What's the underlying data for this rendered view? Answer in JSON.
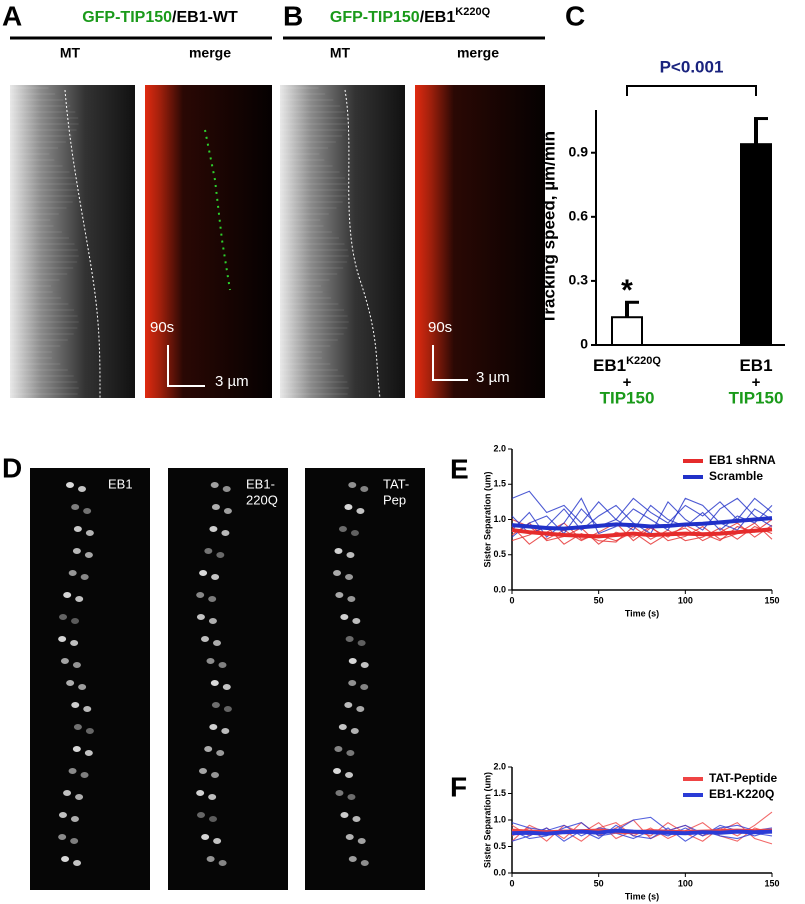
{
  "figure": {
    "A": {
      "letter": "A",
      "heading": [
        "GFP-TIP150",
        "/EB1-WT"
      ],
      "left": "MT",
      "right": "merge",
      "time_scale": "90s",
      "length_scale": "3 µm"
    },
    "B": {
      "letter": "B",
      "heading": [
        "GFP-TIP150",
        "/EB1",
        "K220Q"
      ],
      "left": "MT",
      "right": "merge",
      "time_scale": "90s",
      "length_scale": "3 µm"
    },
    "D": {
      "letter": "D",
      "labels": [
        [
          "EB1"
        ],
        [
          "EB1-",
          "220Q"
        ],
        [
          "TAT-",
          "Pep"
        ]
      ]
    }
  },
  "chart_data": [
    {
      "type": "bar",
      "letter": "C",
      "ylabel": "Tracking speed, µm/min",
      "annotation": "P<0.001",
      "marker": "*",
      "categories": [
        {
          "name": "EB1",
          "superscript": "K220Q",
          "plus": "+",
          "partner": "TIP150"
        },
        {
          "name": "EB1",
          "plus": "+",
          "partner": "TIP150"
        }
      ],
      "values": [
        0.13,
        0.94
      ],
      "errors": [
        0.07,
        0.12
      ],
      "colors": [
        "#ffffff",
        "#000000"
      ],
      "partner_color": "#1a9a1a",
      "ylim": [
        0,
        1.1
      ],
      "yticks": [
        0,
        0.3,
        0.6,
        0.9
      ]
    },
    {
      "type": "line",
      "letter": "E",
      "xlabel": "Time (s)",
      "ylabel": "Sister Separation (um)",
      "legend": "top-right",
      "x": [
        0,
        10,
        20,
        30,
        40,
        50,
        60,
        70,
        80,
        90,
        100,
        110,
        120,
        130,
        140,
        150
      ],
      "xlim": [
        0,
        150
      ],
      "xticks": [
        0,
        50,
        100,
        150
      ],
      "ylim": [
        0,
        2.0
      ],
      "yticks": [
        {
          "value": 0,
          "label": "0.0"
        },
        {
          "value": 0.5,
          "label": "0.5"
        },
        {
          "value": 1.0,
          "label": "1.0"
        },
        {
          "value": 1.5,
          "label": "1.5"
        },
        {
          "value": 2.0,
          "label": "2.0"
        }
      ],
      "series": [
        {
          "name": "EB1 shRNA",
          "color": "#e52b2b",
          "values": [
            0.85,
            0.82,
            0.8,
            0.78,
            0.77,
            0.76,
            0.78,
            0.8,
            0.78,
            0.79,
            0.8,
            0.79,
            0.8,
            0.82,
            0.84,
            0.86
          ],
          "traces": [
            [
              1.0,
              0.9,
              0.72,
              0.85,
              0.7,
              0.82,
              0.95,
              0.7,
              0.88,
              0.75,
              0.92,
              0.8,
              0.7,
              0.9,
              0.82,
              1.0
            ],
            [
              0.7,
              0.78,
              0.9,
              0.65,
              0.8,
              0.7,
              0.68,
              0.9,
              0.72,
              0.85,
              0.7,
              0.75,
              0.88,
              0.72,
              0.9,
              0.8
            ],
            [
              0.9,
              0.65,
              0.82,
              0.95,
              0.72,
              0.78,
              0.7,
              0.82,
              0.65,
              0.8,
              0.88,
              0.7,
              0.82,
              0.95,
              0.75,
              0.92
            ],
            [
              0.78,
              0.95,
              0.7,
              0.76,
              0.88,
              0.65,
              0.82,
              0.75,
              0.9,
              0.7,
              0.76,
              0.9,
              0.72,
              0.8,
              0.95,
              0.72
            ]
          ]
        },
        {
          "name": "Scramble",
          "color": "#2131c8",
          "values": [
            0.92,
            0.9,
            0.88,
            0.87,
            0.89,
            0.91,
            0.93,
            0.92,
            0.9,
            0.91,
            0.93,
            0.94,
            0.96,
            0.98,
            1.0,
            1.02
          ],
          "traces": [
            [
              1.3,
              1.4,
              1.1,
              1.2,
              0.95,
              1.25,
              1.0,
              1.3,
              1.1,
              0.95,
              1.2,
              1.05,
              1.25,
              1.0,
              1.3,
              1.1
            ],
            [
              0.75,
              0.95,
              1.05,
              0.8,
              1.15,
              0.9,
              1.0,
              0.85,
              1.2,
              1.0,
              0.9,
              1.1,
              0.85,
              1.05,
              0.95,
              1.2
            ],
            [
              1.05,
              0.8,
              0.9,
              1.15,
              0.85,
              1.05,
              1.2,
              0.95,
              0.8,
              1.25,
              1.0,
              0.85,
              1.15,
              1.3,
              1.05,
              0.9
            ],
            [
              0.85,
              1.1,
              0.75,
              0.95,
              1.3,
              0.8,
              0.9,
              1.15,
              1.0,
              0.85,
              1.3,
              1.2,
              0.95,
              0.85,
              1.15,
              1.0
            ]
          ]
        }
      ]
    },
    {
      "type": "line",
      "letter": "F",
      "xlabel": "Time (s)",
      "ylabel": "Sister Separation (um)",
      "legend": "top-right",
      "x": [
        0,
        10,
        20,
        30,
        40,
        50,
        60,
        70,
        80,
        90,
        100,
        110,
        120,
        130,
        140,
        150
      ],
      "xlim": [
        0,
        150
      ],
      "xticks": [
        0,
        50,
        100,
        150
      ],
      "ylim": [
        0,
        2.0
      ],
      "yticks": [
        {
          "value": 0,
          "label": "0.0"
        },
        {
          "value": 0.5,
          "label": "0.5"
        },
        {
          "value": 1.0,
          "label": "1.0"
        },
        {
          "value": 1.5,
          "label": "1.5"
        },
        {
          "value": 2.0,
          "label": "2.0"
        }
      ],
      "series": [
        {
          "name": "TAT-Peptide",
          "color": "#ef4444",
          "values": [
            0.8,
            0.78,
            0.77,
            0.78,
            0.79,
            0.8,
            0.78,
            0.77,
            0.79,
            0.78,
            0.77,
            0.78,
            0.79,
            0.8,
            0.79,
            0.8
          ],
          "traces": [
            [
              0.7,
              0.85,
              0.6,
              0.9,
              0.75,
              0.95,
              0.65,
              0.8,
              0.7,
              0.95,
              0.75,
              0.6,
              0.85,
              0.7,
              0.9,
              1.15
            ],
            [
              0.9,
              0.7,
              0.85,
              0.65,
              0.95,
              0.7,
              0.85,
              1.0,
              0.65,
              0.8,
              0.9,
              0.7,
              0.8,
              0.95,
              0.65,
              0.55
            ],
            [
              0.6,
              0.9,
              0.75,
              0.8,
              0.6,
              0.85,
              0.95,
              0.7,
              0.85,
              0.65,
              0.8,
              0.95,
              0.7,
              0.6,
              0.85,
              0.75
            ]
          ]
        },
        {
          "name": "EB1-K220Q",
          "color": "#2a3bd6",
          "values": [
            0.75,
            0.76,
            0.74,
            0.77,
            0.78,
            0.76,
            0.8,
            0.78,
            0.77,
            0.76,
            0.75,
            0.77,
            0.76,
            0.78,
            0.77,
            0.78
          ],
          "traces": [
            [
              0.95,
              0.85,
              0.8,
              0.9,
              0.7,
              0.85,
              0.8,
              1.0,
              1.05,
              0.8,
              0.9,
              0.75,
              0.85,
              0.9,
              0.8,
              0.85
            ],
            [
              0.6,
              0.7,
              0.85,
              0.6,
              0.8,
              0.65,
              0.9,
              0.7,
              0.65,
              0.85,
              0.6,
              0.8,
              0.7,
              0.65,
              0.75,
              0.7
            ],
            [
              0.8,
              0.65,
              0.7,
              0.85,
              0.95,
              0.7,
              0.75,
              0.65,
              0.8,
              0.7,
              0.85,
              0.7,
              0.9,
              0.8,
              0.7,
              0.8
            ]
          ]
        }
      ]
    }
  ]
}
